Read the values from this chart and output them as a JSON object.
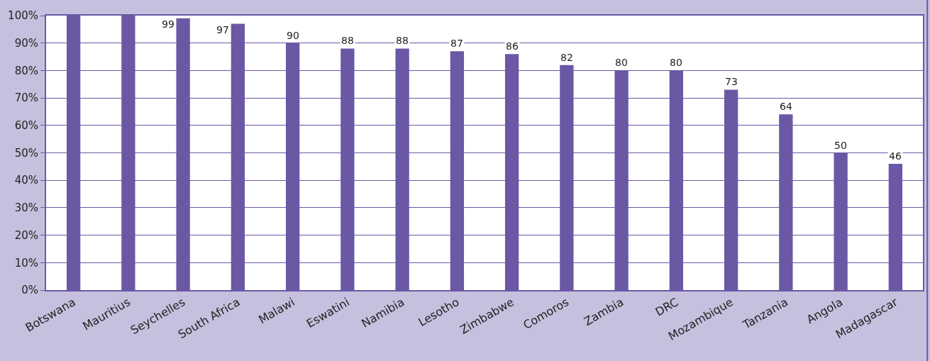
{
  "chart_data": {
    "type": "bar",
    "categories": [
      "Botswana",
      "Mauritius",
      "Seychelles",
      "South Africa",
      "Malawi",
      "Eswatini",
      "Namibia",
      "Lesotho",
      "Zimbabwe",
      "Comoros",
      "Zambia",
      "DRC",
      "Mozambique",
      "Tanzania",
      "Angola",
      "Madagascar"
    ],
    "values": [
      100,
      100,
      99,
      97,
      90,
      88,
      88,
      87,
      86,
      82,
      80,
      80,
      73,
      64,
      50,
      46
    ],
    "value_labels": [
      null,
      null,
      "99",
      "97",
      "90",
      "88",
      "88",
      "87",
      "86",
      "82",
      "80",
      "80",
      "73",
      "64",
      "50",
      "46"
    ],
    "color": "#6a58a5",
    "ylim": [
      0,
      100
    ],
    "yticks": [
      {
        "value": 0,
        "label": "0%"
      },
      {
        "value": 10,
        "label": "10%"
      },
      {
        "value": 20,
        "label": "20%"
      },
      {
        "value": 30,
        "label": "30%"
      },
      {
        "value": 40,
        "label": "40%"
      },
      {
        "value": 50,
        "label": "50%"
      },
      {
        "value": 60,
        "label": "60%"
      },
      {
        "value": 70,
        "label": "70%"
      },
      {
        "value": 80,
        "label": "80%"
      },
      {
        "value": 90,
        "label": "90%"
      },
      {
        "value": 100,
        "label": "100%"
      }
    ],
    "grid": true,
    "legend": false
  }
}
